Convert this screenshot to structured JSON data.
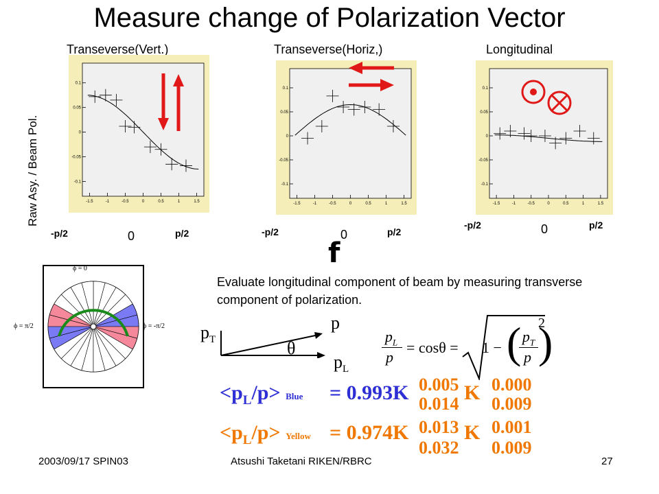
{
  "slide": {
    "title": "Measure change of Polarization Vector",
    "y_axis_label": "Raw Asy. / Beam Pol."
  },
  "plots": [
    {
      "title": "Transeverse(Vert.)",
      "left_label": "-p/2",
      "zero_label": "0",
      "right_label": "p/2"
    },
    {
      "title": "Transeverse(Horiz,)",
      "left_label": "-p/2",
      "zero_label": "0",
      "right_label": "p/2"
    },
    {
      "title": "Longitudinal",
      "left_label": "-p/2",
      "zero_label": "0",
      "right_label": "p/2"
    }
  ],
  "chart_data": [
    {
      "type": "scatter",
      "x_ticks": [
        "-1.5",
        "-1",
        "-0.5",
        "0",
        "0.5",
        "1",
        "1.5"
      ],
      "y_ticks": [
        "0.1",
        "0.05",
        "0",
        "-0.05",
        "-0.1"
      ],
      "xlim": [
        -1.7,
        1.7
      ],
      "ylim": [
        -0.13,
        0.14
      ],
      "points": [
        {
          "x": -1.35,
          "y": 0.072
        },
        {
          "x": -1.05,
          "y": 0.075
        },
        {
          "x": -0.75,
          "y": 0.065
        },
        {
          "x": -0.5,
          "y": 0.012
        },
        {
          "x": -0.25,
          "y": 0.01
        },
        {
          "x": 0.2,
          "y": -0.03
        },
        {
          "x": 0.5,
          "y": -0.035
        },
        {
          "x": 0.8,
          "y": -0.065
        },
        {
          "x": 1.2,
          "y": -0.068
        }
      ],
      "fit": {
        "amplitude": 0.075,
        "form": "sin",
        "offset": 0
      },
      "colors": {
        "frame": "#f5eeb8",
        "plot": "#f0f0f0"
      }
    },
    {
      "type": "scatter",
      "x_ticks": [
        "-1.5",
        "-1",
        "-0.5",
        "0",
        "0.5",
        "1",
        "1.5"
      ],
      "y_ticks": [
        "0.1",
        "0.05",
        "0",
        "-0.05",
        "-0.1"
      ],
      "xlim": [
        -1.7,
        1.7
      ],
      "ylim": [
        -0.13,
        0.14
      ],
      "points": [
        {
          "x": -1.2,
          "y": -0.005
        },
        {
          "x": -0.8,
          "y": 0.02
        },
        {
          "x": -0.5,
          "y": 0.083
        },
        {
          "x": -0.2,
          "y": 0.06
        },
        {
          "x": 0.1,
          "y": 0.055
        },
        {
          "x": 0.4,
          "y": 0.06
        },
        {
          "x": 0.8,
          "y": 0.055
        },
        {
          "x": 1.2,
          "y": 0.02
        }
      ],
      "fit": {
        "amplitude": 0.065,
        "form": "cos",
        "offset": 0
      },
      "colors": {
        "frame": "#f5eeb8",
        "plot": "#f0f0f0"
      }
    },
    {
      "type": "scatter",
      "x_ticks": [
        "-1.5",
        "-1",
        "-0.5",
        "0",
        "0.5",
        "1",
        "1.5"
      ],
      "y_ticks": [
        "0.1",
        "0.05",
        "0",
        "-0.05",
        "-0.1"
      ],
      "xlim": [
        -1.7,
        1.7
      ],
      "ylim": [
        -0.13,
        0.14
      ],
      "points": [
        {
          "x": -1.4,
          "y": 0.005
        },
        {
          "x": -1.1,
          "y": 0.01
        },
        {
          "x": -0.7,
          "y": 0.005
        },
        {
          "x": -0.5,
          "y": 0.0
        },
        {
          "x": -0.1,
          "y": 0.0
        },
        {
          "x": 0.2,
          "y": -0.015
        },
        {
          "x": 0.5,
          "y": -0.005
        },
        {
          "x": 0.9,
          "y": 0.01
        },
        {
          "x": 1.3,
          "y": -0.005
        }
      ],
      "fit": {
        "amplitude": 0.007,
        "form": "sin",
        "offset": -0.005
      },
      "colors": {
        "frame": "#f5eeb8",
        "plot": "#f0f0f0"
      }
    }
  ],
  "phi_symbol": "f",
  "evaluate_text": "Evaluate longitudinal component of beam by measuring transverse component of polarization.",
  "detector": {
    "label_top": "ϕ = 0",
    "label_left": "ϕ = π/2",
    "label_right": "ϕ = -π/2",
    "colors": {
      "blue": "#7a7af5",
      "red": "#f5889a",
      "arc": "#1a8a1a"
    }
  },
  "vector_diagram": {
    "p": "p",
    "pT": "p",
    "pT_sub": "T",
    "pL": "p",
    "pL_sub": "L",
    "theta": "θ"
  },
  "formula": {
    "lhs_num": "p",
    "lhs_num_sub": "L",
    "lhs_den": "p",
    "eq_cos": "= cosθ =",
    "one_minus": "1 −",
    "inner_num": "p",
    "inner_num_sub": "T",
    "inner_den": "p",
    "power": "2"
  },
  "results": [
    {
      "open": "<p",
      "sub_L": "L",
      "slash_p": "/p>",
      "beam": "Blue",
      "value": "= 0.993",
      "k1": "K",
      "stat_up": "0.005",
      "stat_down": "0.014",
      "k2": "K",
      "sys_up": "0.000",
      "sys_down": "0.009",
      "color": "#2f2fd6"
    },
    {
      "open": "<p",
      "sub_L": "L",
      "slash_p": "/p>",
      "beam": "Yellow",
      "value": "= 0.974",
      "k1": "K",
      "stat_up": "0.013",
      "stat_down": "0.032",
      "k2": "K",
      "sys_up": "0.001",
      "sys_down": "0.009",
      "color": "#f07800"
    }
  ],
  "footer": {
    "left": "2003/09/17 SPIN03",
    "center": "Atsushi Taketani RIKEN/RBRC",
    "right": "27"
  }
}
